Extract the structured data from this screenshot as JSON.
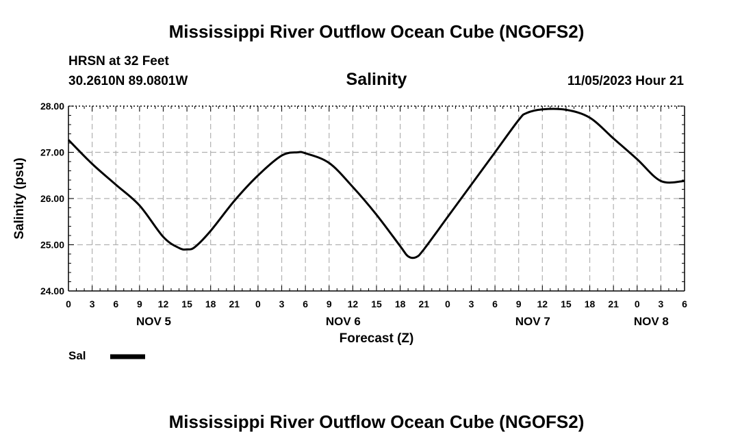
{
  "header": {
    "title": "Mississippi River Outflow Ocean Cube (NGOFS2)",
    "station": "HRSN at 32 Feet",
    "coords": "30.2610N  89.0801W",
    "variable": "Salinity",
    "datetime": "11/05/2023 Hour 21"
  },
  "footer": {
    "title": "Mississippi River Outflow Ocean Cube (NGOFS2)"
  },
  "legend": {
    "label": "Sal"
  },
  "colors": {
    "line": "#000000",
    "grid": "#b0b0b0",
    "background": "#ffffff"
  },
  "chart_data": {
    "type": "line",
    "title": "Salinity",
    "xlabel": "Forecast (Z)",
    "ylabel": "Salinity (psu)",
    "ylim": [
      24.0,
      28.0
    ],
    "xlim": [
      0,
      78
    ],
    "x_unit": "hours from 0Z Nov 5, 2023",
    "y_ticks": [
      "24.00",
      "25.00",
      "26.00",
      "27.00",
      "28.00"
    ],
    "x_tick_labels": [
      "0",
      "3",
      "6",
      "9",
      "12",
      "15",
      "18",
      "21",
      "0",
      "3",
      "6",
      "9",
      "12",
      "15",
      "18",
      "21",
      "0",
      "3",
      "6",
      "9",
      "12",
      "15",
      "18",
      "21",
      "0",
      "3",
      "6"
    ],
    "date_labels": [
      {
        "label": "NOV 5",
        "hour": 12
      },
      {
        "label": "NOV 6",
        "hour": 36
      },
      {
        "label": "NOV 7",
        "hour": 60
      },
      {
        "label": "NOV 8",
        "hour": 75
      }
    ],
    "grid": true,
    "legend_position": "bottom-left",
    "series": [
      {
        "name": "Sal",
        "x": [
          0,
          3,
          6,
          9,
          12,
          14,
          15,
          16,
          18,
          21,
          24,
          27,
          29,
          30,
          33,
          36,
          39,
          42,
          43,
          44,
          45,
          48,
          51,
          54,
          57,
          58,
          60,
          63,
          66,
          69,
          72,
          75,
          78
        ],
        "values": [
          27.27,
          26.75,
          26.3,
          25.85,
          25.17,
          24.93,
          24.9,
          24.95,
          25.3,
          25.95,
          26.5,
          26.93,
          27.0,
          26.98,
          26.77,
          26.25,
          25.65,
          24.97,
          24.75,
          24.73,
          24.9,
          25.6,
          26.3,
          27.0,
          27.7,
          27.85,
          27.93,
          27.92,
          27.75,
          27.3,
          26.85,
          26.38,
          26.38
        ]
      }
    ]
  }
}
